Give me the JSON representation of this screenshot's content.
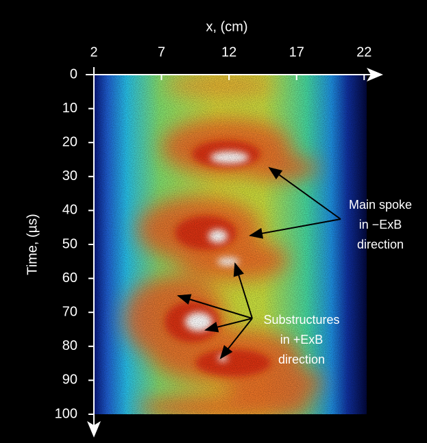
{
  "chart_data": {
    "type": "heatmap",
    "x_label": "x, (cm)",
    "y_label": "Time, (µs)",
    "xlim": [
      2,
      23
    ],
    "ylim": [
      0,
      100
    ],
    "xticks": [
      2,
      7,
      12,
      17,
      22
    ],
    "yticks": [
      0,
      10,
      20,
      30,
      40,
      50,
      60,
      70,
      80,
      90,
      100
    ],
    "annotations": [
      {
        "lines": [
          "Main spoke",
          "in −ExB",
          "direction"
        ]
      },
      {
        "lines": [
          "Substructures",
          "in +ExB",
          "direction"
        ]
      }
    ]
  }
}
